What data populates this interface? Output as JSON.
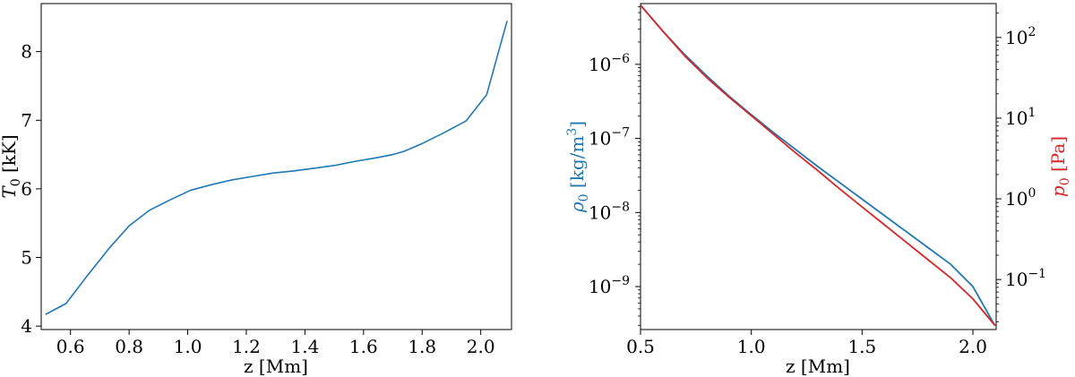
{
  "chart_data": [
    {
      "type": "line",
      "xlabel": "z [Mm]",
      "ylabel_main": "T",
      "ylabel_sub": "0",
      "ylabel_unit": " [kK]",
      "xlim": [
        0.5,
        2.105
      ],
      "ylim": [
        3.95,
        8.7
      ],
      "xticks": [
        0.6,
        0.8,
        1.0,
        1.2,
        1.4,
        1.6,
        1.8,
        2.0
      ],
      "xtick_labels": [
        "0.6",
        "0.8",
        "1.0",
        "1.2",
        "1.4",
        "1.6",
        "1.8",
        "2.0"
      ],
      "yticks": [
        4,
        5,
        6,
        7,
        8
      ],
      "ytick_labels": [
        "4",
        "5",
        "6",
        "7",
        "8"
      ],
      "color": "#1f77b4",
      "series": [
        {
          "x": [
            0.515,
            0.585,
            0.66,
            0.735,
            0.8,
            0.87,
            0.94,
            1.01,
            1.08,
            1.15,
            1.22,
            1.29,
            1.36,
            1.43,
            1.5,
            1.57,
            1.64,
            1.7,
            1.74,
            1.8,
            1.88,
            1.95,
            2.02,
            2.09
          ],
          "y": [
            4.17,
            4.33,
            4.75,
            5.15,
            5.46,
            5.69,
            5.84,
            5.98,
            6.06,
            6.13,
            6.18,
            6.23,
            6.26,
            6.3,
            6.34,
            6.4,
            6.45,
            6.5,
            6.55,
            6.66,
            6.83,
            6.99,
            7.37,
            8.45
          ]
        }
      ]
    },
    {
      "type": "line",
      "xlabel": "z [Mm]",
      "xlim": [
        0.5,
        2.105
      ],
      "xticks": [
        0.5,
        1.0,
        1.5,
        2.0
      ],
      "xtick_labels": [
        "0.5",
        "1.0",
        "1.5",
        "2.0"
      ],
      "yscale": "log",
      "ylabel_left_main": "ρ",
      "ylabel_left_sub": "0",
      "ylabel_left_unit": " [kg/m",
      "ylabel_left_sup": "3",
      "ylabel_left_close": "]",
      "ylim_left_exp": [
        -9.58,
        -5.18
      ],
      "yticks_left": [
        {
          "base": "10",
          "exp": "−6",
          "value": -6
        },
        {
          "base": "10",
          "exp": "−7",
          "value": -7
        },
        {
          "base": "10",
          "exp": "−8",
          "value": -8
        },
        {
          "base": "10",
          "exp": "−9",
          "value": -9
        }
      ],
      "ylabel_right_main": "p",
      "ylabel_right_sub": "0",
      "ylabel_right_unit": " [Pa]",
      "ylim_right_exp": [
        -1.62,
        2.42
      ],
      "yticks_right": [
        {
          "base": "10",
          "exp": "2",
          "value": 2
        },
        {
          "base": "10",
          "exp": "1",
          "value": 1
        },
        {
          "base": "10",
          "exp": "0",
          "value": 0
        },
        {
          "base": "10",
          "exp": "−1",
          "value": -1
        }
      ],
      "left_color": "#1f77b4",
      "right_color": "#d62728",
      "series": [
        {
          "axis": "left",
          "color": "#1f77b4",
          "x": [
            0.5,
            0.6,
            0.7,
            0.8,
            0.9,
            1.0,
            1.1,
            1.2,
            1.3,
            1.4,
            1.5,
            1.6,
            1.7,
            1.8,
            1.9,
            2.0,
            2.1
          ],
          "log10_y": [
            -5.2,
            -5.55,
            -5.87,
            -6.16,
            -6.43,
            -6.68,
            -6.92,
            -7.15,
            -7.38,
            -7.6,
            -7.82,
            -8.04,
            -8.26,
            -8.48,
            -8.7,
            -9.0,
            -9.53
          ]
        },
        {
          "axis": "right",
          "color": "#d62728",
          "x": [
            0.5,
            0.6,
            0.7,
            0.8,
            0.9,
            1.0,
            1.1,
            1.2,
            1.3,
            1.4,
            1.5,
            1.6,
            1.7,
            1.8,
            1.9,
            2.0,
            2.1
          ],
          "log10_y": [
            2.4,
            2.08,
            1.77,
            1.5,
            1.26,
            1.03,
            0.8,
            0.57,
            0.35,
            0.12,
            -0.1,
            -0.32,
            -0.54,
            -0.76,
            -0.98,
            -1.24,
            -1.57
          ]
        }
      ]
    }
  ]
}
